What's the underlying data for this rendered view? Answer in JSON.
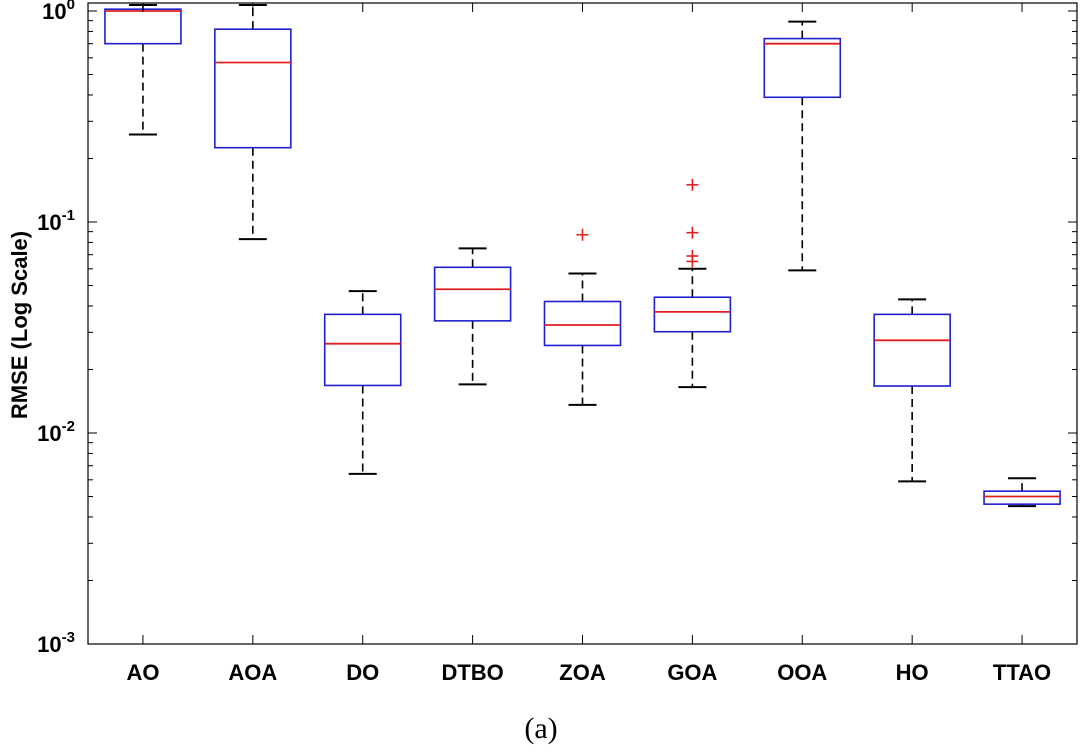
{
  "caption": "(a)",
  "chart_data": {
    "type": "boxplot",
    "ylabel": "RMSE (Log Scale)",
    "xlabel": "",
    "yscale": "log",
    "ylim": [
      0.001,
      1.1
    ],
    "grid": false,
    "categories": [
      "AO",
      "AOA",
      "DO",
      "DTBO",
      "ZOA",
      "GOA",
      "OOA",
      "HO",
      "TTAO"
    ],
    "y_ticks": [
      {
        "base": "10",
        "exp": "0",
        "value": 1
      },
      {
        "base": "10",
        "exp": "-1",
        "value": 0.1
      },
      {
        "base": "10",
        "exp": "-2",
        "value": 0.01
      },
      {
        "base": "10",
        "exp": "-3",
        "value": 0.001
      }
    ],
    "boxes": [
      {
        "name": "AO",
        "whisker_low": 0.26,
        "q1": 0.7,
        "median": 1.0,
        "q3": 1.02,
        "whisker_high": 1.08,
        "outliers": []
      },
      {
        "name": "AOA",
        "whisker_low": 0.083,
        "q1": 0.225,
        "median": 0.57,
        "q3": 0.82,
        "whisker_high": 1.08,
        "outliers": []
      },
      {
        "name": "DO",
        "whisker_low": 0.0064,
        "q1": 0.0168,
        "median": 0.0265,
        "q3": 0.0365,
        "whisker_high": 0.047,
        "outliers": []
      },
      {
        "name": "DTBO",
        "whisker_low": 0.017,
        "q1": 0.034,
        "median": 0.048,
        "q3": 0.061,
        "whisker_high": 0.075,
        "outliers": []
      },
      {
        "name": "ZOA",
        "whisker_low": 0.0136,
        "q1": 0.026,
        "median": 0.0325,
        "q3": 0.042,
        "whisker_high": 0.057,
        "outliers": [
          0.087
        ]
      },
      {
        "name": "GOA",
        "whisker_low": 0.0165,
        "q1": 0.0302,
        "median": 0.0375,
        "q3": 0.044,
        "whisker_high": 0.06,
        "outliers": [
          0.065,
          0.069,
          0.089,
          0.15
        ]
      },
      {
        "name": "OOA",
        "whisker_low": 0.059,
        "q1": 0.39,
        "median": 0.7,
        "q3": 0.74,
        "whisker_high": 0.89,
        "outliers": []
      },
      {
        "name": "HO",
        "whisker_low": 0.0059,
        "q1": 0.0167,
        "median": 0.0275,
        "q3": 0.0365,
        "whisker_high": 0.043,
        "outliers": []
      },
      {
        "name": "TTAO",
        "whisker_low": 0.0045,
        "q1": 0.0046,
        "median": 0.005,
        "q3": 0.0053,
        "whisker_high": 0.0061,
        "outliers": []
      }
    ],
    "colors": {
      "box": "#1f1fd0",
      "median": "#e02020",
      "whisker": "#000000",
      "outlier": "#e02020",
      "axis": "#000000"
    }
  }
}
